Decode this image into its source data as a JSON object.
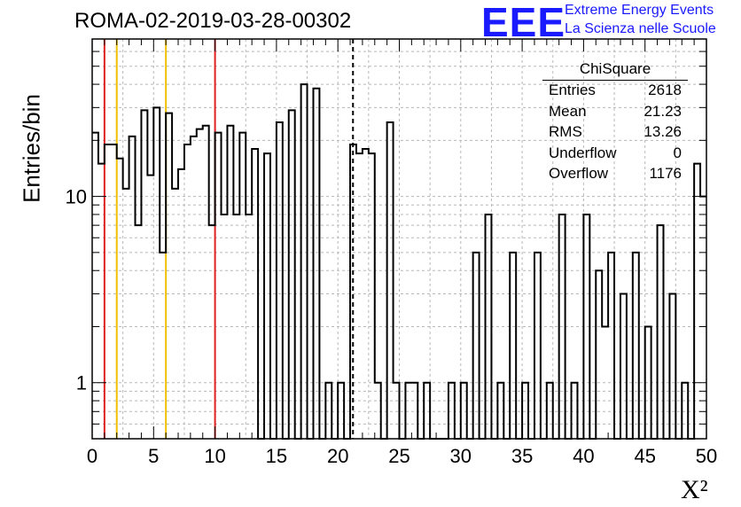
{
  "header": {
    "title": "ROMA-02-2019-03-28-00302",
    "logo": "EEE",
    "logo_line1": "Extreme Energy Events",
    "logo_line2": "La Scienza nelle Scuole"
  },
  "stats": {
    "title": "ChiSquare",
    "rows": [
      {
        "key": "Entries",
        "value": "2618"
      },
      {
        "key": "Mean",
        "value": "21.23"
      },
      {
        "key": "RMS",
        "value": "13.26"
      },
      {
        "key": "Underflow",
        "value": "0"
      },
      {
        "key": "Overflow",
        "value": "1176"
      }
    ]
  },
  "chart_data": {
    "type": "bar",
    "histogram": true,
    "xlabel": "X²",
    "ylabel": "Entries/bin",
    "xlim": [
      0,
      50
    ],
    "ylim": [
      0.5,
      70
    ],
    "log_y": true,
    "grid": true,
    "bin_width": 0.5,
    "x_ticks": [
      "0",
      "5",
      "10",
      "15",
      "20",
      "25",
      "30",
      "35",
      "40",
      "45",
      "50"
    ],
    "y_ticks": [
      "1",
      "10"
    ],
    "values": [
      22,
      15,
      19,
      19,
      16,
      11,
      21,
      7,
      29,
      13,
      30,
      5,
      28,
      11,
      14,
      19,
      21,
      23,
      24,
      7,
      22,
      8,
      24,
      8,
      22,
      8,
      18,
      0,
      17,
      0,
      25,
      0,
      29,
      0,
      40,
      0,
      38,
      0,
      1,
      0,
      1,
      0,
      19,
      17,
      18,
      17,
      1,
      0,
      25,
      1,
      0,
      1,
      1,
      0,
      1,
      0,
      0,
      0,
      1,
      0,
      1,
      0,
      5,
      0,
      8,
      0,
      1,
      0,
      5,
      0,
      1,
      0,
      5,
      0,
      1,
      0,
      8,
      0,
      1,
      0,
      8,
      0,
      4,
      2,
      5,
      0,
      3,
      0,
      5,
      0,
      2,
      0,
      7,
      0,
      3,
      0,
      1,
      0,
      15,
      10
    ],
    "vertical_lines": [
      {
        "x": 1,
        "color": "#e02020",
        "style": "solid"
      },
      {
        "x": 2,
        "color": "#f0c000",
        "style": "solid"
      },
      {
        "x": 6,
        "color": "#f0c000",
        "style": "solid"
      },
      {
        "x": 10,
        "color": "#e02020",
        "style": "solid"
      },
      {
        "x": 21.23,
        "color": "#000000",
        "style": "dashed"
      }
    ]
  }
}
